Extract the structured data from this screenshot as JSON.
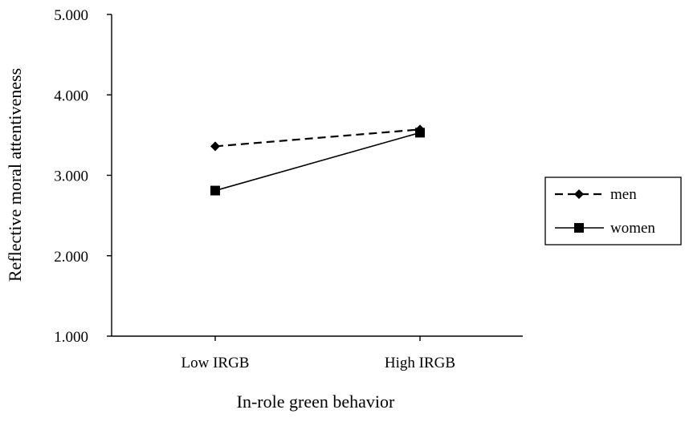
{
  "chart_data": {
    "type": "line",
    "categories": [
      "Low IRGB",
      "High IRGB"
    ],
    "series": [
      {
        "name": "men",
        "values": [
          3.36,
          3.57
        ],
        "line_style": "dashed",
        "marker": "diamond",
        "color": "#000000"
      },
      {
        "name": "women",
        "values": [
          2.81,
          3.53
        ],
        "line_style": "solid",
        "marker": "square",
        "color": "#000000"
      }
    ],
    "xlabel": "In-role green behavior",
    "ylabel": "Reflective moral attentiveness",
    "ylim": [
      1.0,
      5.0
    ],
    "yticks": [
      "1.000",
      "2.000",
      "3.000",
      "4.000",
      "5.000"
    ],
    "grid": false,
    "legend_position": "right"
  }
}
